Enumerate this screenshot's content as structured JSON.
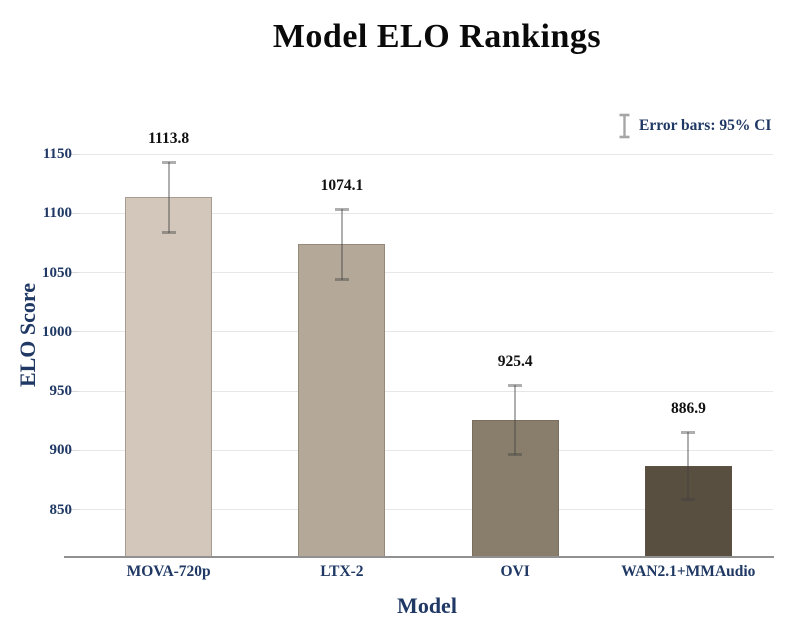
{
  "chart_data": {
    "type": "bar",
    "title": "Model ELO Rankings",
    "xlabel": "Model",
    "ylabel": "ELO Score",
    "categories": [
      "MOVA-720p",
      "LTX-2",
      "OVI",
      "WAN2.1+MMAudio"
    ],
    "values": [
      1113.8,
      1074.1,
      925.4,
      886.9
    ],
    "value_labels": [
      "1113.8",
      "1074.1",
      "925.4",
      "886.9"
    ],
    "ci95": [
      30,
      30,
      29.5,
      29
    ],
    "yticks": [
      1150,
      1100,
      1050,
      1000,
      950,
      900,
      850
    ],
    "ylim": [
      810,
      1200
    ],
    "grid": true,
    "legend": {
      "label": "Error bars: 95% CI",
      "position": "top-right"
    },
    "bar_colors": [
      "#d2c7ba",
      "#b4a998",
      "#897e6b",
      "#594f40"
    ],
    "colors": {
      "axis_text": "#1f3864",
      "title_text": "#0a0a0a",
      "value_label_text": "#101010",
      "gridline": "#e7e7e7",
      "axis_line": "#909090",
      "error_bar": "#a6a6a6"
    }
  }
}
